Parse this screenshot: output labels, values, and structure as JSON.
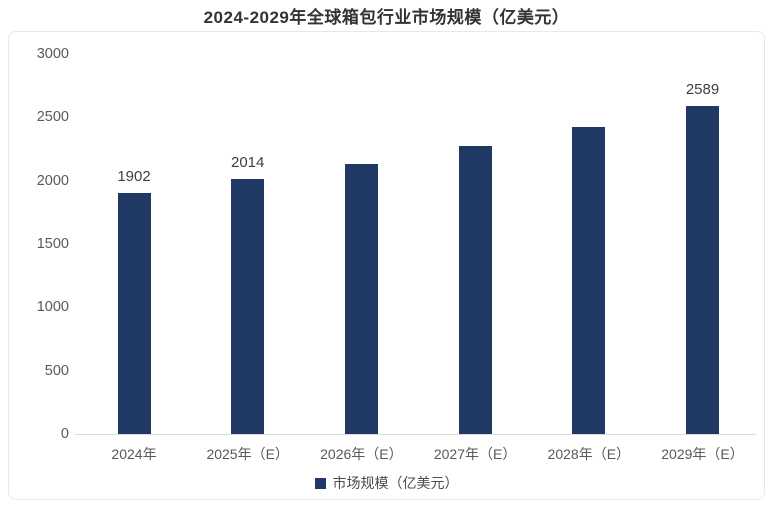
{
  "title": "2024-2029年全球箱包行业市场规模（亿美元）",
  "legend": {
    "label": "市场规模（亿美元）",
    "marker_color": "#1F3864"
  },
  "colors": {
    "bar": "#1F3864",
    "axis_line": "#D9D9D9",
    "tick_text": "#595959",
    "data_label": "#404040",
    "title_text": "#333333",
    "card_border": "#E8E8E8"
  },
  "chart_data": {
    "type": "bar",
    "title": "2024-2029年全球箱包行业市场规模（亿美元）",
    "categories": [
      "2024年",
      "2025年（E）",
      "2026年（E）",
      "2027年（E）",
      "2028年（E）",
      "2029年（E）"
    ],
    "values": [
      1902,
      2014,
      2135,
      2275,
      2425,
      2589
    ],
    "data_labels": [
      "1902",
      "2014",
      null,
      null,
      null,
      "2589"
    ],
    "series_name": "市场规模（亿美元）",
    "xlabel": "",
    "ylabel": "",
    "ylim": [
      0,
      3000
    ],
    "yticks": [
      0,
      500,
      1000,
      1500,
      2000,
      2500,
      3000
    ],
    "grid": false,
    "legend_position": "bottom"
  }
}
